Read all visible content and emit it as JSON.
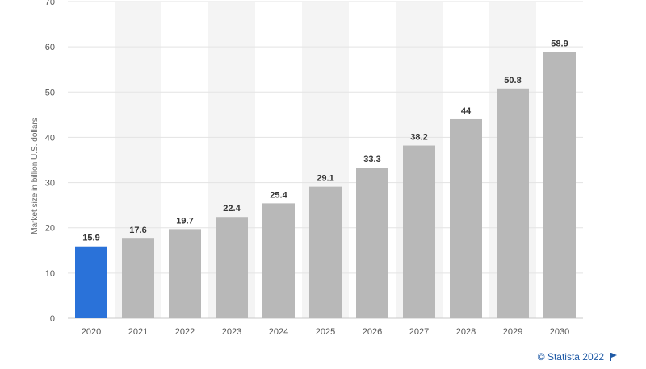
{
  "chart_data": {
    "type": "bar",
    "categories": [
      "2020",
      "2021",
      "2022",
      "2023",
      "2024",
      "2025",
      "2026",
      "2027",
      "2028",
      "2029",
      "2030"
    ],
    "values": [
      15.9,
      17.6,
      19.7,
      22.4,
      25.4,
      29.1,
      33.3,
      38.2,
      44,
      50.8,
      58.9
    ],
    "value_labels": [
      "15.9",
      "17.6",
      "19.7",
      "22.4",
      "25.4",
      "29.1",
      "33.3",
      "38.2",
      "44",
      "50.8",
      "58.9"
    ],
    "ylabel": "Market size in billion U.S. dollars",
    "xlabel": "",
    "ylim": [
      0,
      70
    ],
    "yticks": [
      0,
      10,
      20,
      30,
      40,
      50,
      60,
      70
    ],
    "grid": true,
    "highlight_index": 0,
    "colors": {
      "bar": "#b8b8b8",
      "highlight": "#2a72d9"
    }
  },
  "footer": {
    "credit": "© Statista 2022"
  },
  "icons": {
    "credit_icon": "flag-icon"
  }
}
